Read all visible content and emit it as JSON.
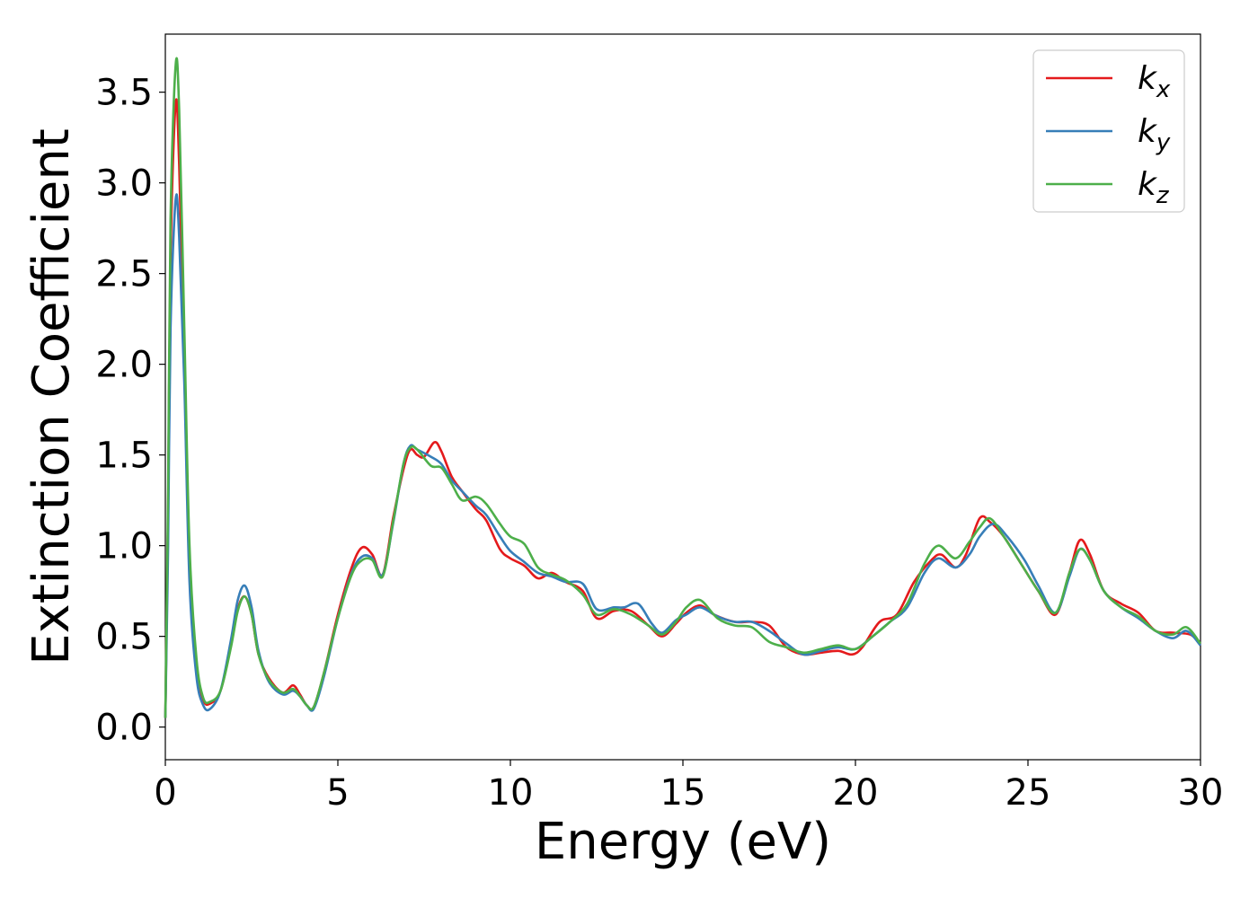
{
  "chart_data": {
    "type": "line",
    "xlabel": "Energy (eV)",
    "ylabel": "Extinction Coefficient",
    "xlim": [
      0,
      30
    ],
    "ylim": [
      -0.18,
      3.82
    ],
    "xticks": [
      0,
      5,
      10,
      15,
      20,
      25,
      30
    ],
    "xtick_labels": [
      "0",
      "5",
      "10",
      "15",
      "20",
      "25",
      "30"
    ],
    "yticks": [
      0.0,
      0.5,
      1.0,
      1.5,
      2.0,
      2.5,
      3.0,
      3.5
    ],
    "ytick_labels": [
      "0.0",
      "0.5",
      "1.0",
      "1.5",
      "2.0",
      "2.5",
      "3.0",
      "3.5"
    ],
    "grid": false,
    "legend": {
      "position": "top-right",
      "entries": [
        {
          "base": "k",
          "sub": "x"
        },
        {
          "base": "k",
          "sub": "y"
        },
        {
          "base": "k",
          "sub": "z"
        }
      ]
    },
    "series": [
      {
        "color": "#e41a1c",
        "points": [
          [
            0,
            0.05
          ],
          [
            0.08,
            1.2
          ],
          [
            0.15,
            2.6
          ],
          [
            0.3,
            3.44
          ],
          [
            0.4,
            3.1
          ],
          [
            0.55,
            2.0
          ],
          [
            0.7,
            0.9
          ],
          [
            0.9,
            0.35
          ],
          [
            1.1,
            0.15
          ],
          [
            1.3,
            0.13
          ],
          [
            1.6,
            0.2
          ],
          [
            1.9,
            0.45
          ],
          [
            2.1,
            0.65
          ],
          [
            2.3,
            0.72
          ],
          [
            2.5,
            0.62
          ],
          [
            2.7,
            0.4
          ],
          [
            3.0,
            0.27
          ],
          [
            3.4,
            0.19
          ],
          [
            3.7,
            0.23
          ],
          [
            3.9,
            0.18
          ],
          [
            4.1,
            0.12
          ],
          [
            4.3,
            0.11
          ],
          [
            4.6,
            0.3
          ],
          [
            5.0,
            0.62
          ],
          [
            5.4,
            0.88
          ],
          [
            5.7,
            0.99
          ],
          [
            6.0,
            0.95
          ],
          [
            6.3,
            0.84
          ],
          [
            6.6,
            1.15
          ],
          [
            6.9,
            1.42
          ],
          [
            7.1,
            1.53
          ],
          [
            7.3,
            1.5
          ],
          [
            7.5,
            1.49
          ],
          [
            7.8,
            1.57
          ],
          [
            8.0,
            1.52
          ],
          [
            8.3,
            1.38
          ],
          [
            8.6,
            1.3
          ],
          [
            9.0,
            1.2
          ],
          [
            9.3,
            1.14
          ],
          [
            9.7,
            0.98
          ],
          [
            10.0,
            0.93
          ],
          [
            10.4,
            0.89
          ],
          [
            10.8,
            0.82
          ],
          [
            11.2,
            0.85
          ],
          [
            11.6,
            0.8
          ],
          [
            12.1,
            0.75
          ],
          [
            12.5,
            0.6
          ],
          [
            13.0,
            0.64
          ],
          [
            13.5,
            0.64
          ],
          [
            14.0,
            0.56
          ],
          [
            14.4,
            0.5
          ],
          [
            14.8,
            0.57
          ],
          [
            15.1,
            0.63
          ],
          [
            15.5,
            0.67
          ],
          [
            15.9,
            0.62
          ],
          [
            16.5,
            0.58
          ],
          [
            17.0,
            0.58
          ],
          [
            17.5,
            0.56
          ],
          [
            18.0,
            0.44
          ],
          [
            18.5,
            0.4
          ],
          [
            19.0,
            0.41
          ],
          [
            19.5,
            0.42
          ],
          [
            19.9,
            0.4
          ],
          [
            20.2,
            0.44
          ],
          [
            20.7,
            0.58
          ],
          [
            21.2,
            0.62
          ],
          [
            21.7,
            0.8
          ],
          [
            22.2,
            0.92
          ],
          [
            22.5,
            0.95
          ],
          [
            22.9,
            0.88
          ],
          [
            23.2,
            0.95
          ],
          [
            23.6,
            1.15
          ],
          [
            23.9,
            1.13
          ],
          [
            24.3,
            1.05
          ],
          [
            24.8,
            0.9
          ],
          [
            25.3,
            0.75
          ],
          [
            25.8,
            0.62
          ],
          [
            26.2,
            0.85
          ],
          [
            26.5,
            1.03
          ],
          [
            26.8,
            0.95
          ],
          [
            27.2,
            0.75
          ],
          [
            27.7,
            0.68
          ],
          [
            28.2,
            0.63
          ],
          [
            28.7,
            0.53
          ],
          [
            29.2,
            0.52
          ],
          [
            29.7,
            0.51
          ],
          [
            30.0,
            0.46
          ]
        ]
      },
      {
        "color": "#377eb8",
        "points": [
          [
            0,
            0.05
          ],
          [
            0.08,
            1.0
          ],
          [
            0.15,
            2.2
          ],
          [
            0.3,
            2.91
          ],
          [
            0.4,
            2.7
          ],
          [
            0.55,
            1.9
          ],
          [
            0.7,
            0.8
          ],
          [
            0.9,
            0.28
          ],
          [
            1.1,
            0.12
          ],
          [
            1.3,
            0.1
          ],
          [
            1.6,
            0.2
          ],
          [
            1.9,
            0.48
          ],
          [
            2.1,
            0.7
          ],
          [
            2.3,
            0.78
          ],
          [
            2.5,
            0.66
          ],
          [
            2.7,
            0.42
          ],
          [
            3.0,
            0.25
          ],
          [
            3.4,
            0.18
          ],
          [
            3.7,
            0.2
          ],
          [
            3.9,
            0.17
          ],
          [
            4.1,
            0.12
          ],
          [
            4.3,
            0.1
          ],
          [
            4.6,
            0.28
          ],
          [
            5.0,
            0.6
          ],
          [
            5.4,
            0.85
          ],
          [
            5.7,
            0.94
          ],
          [
            6.0,
            0.93
          ],
          [
            6.3,
            0.84
          ],
          [
            6.6,
            1.12
          ],
          [
            6.9,
            1.45
          ],
          [
            7.1,
            1.55
          ],
          [
            7.3,
            1.53
          ],
          [
            7.7,
            1.49
          ],
          [
            8.0,
            1.45
          ],
          [
            8.3,
            1.36
          ],
          [
            8.6,
            1.3
          ],
          [
            9.0,
            1.22
          ],
          [
            9.3,
            1.17
          ],
          [
            9.7,
            1.05
          ],
          [
            10.0,
            0.97
          ],
          [
            10.4,
            0.91
          ],
          [
            10.8,
            0.85
          ],
          [
            11.2,
            0.83
          ],
          [
            11.6,
            0.8
          ],
          [
            12.1,
            0.79
          ],
          [
            12.5,
            0.65
          ],
          [
            13.0,
            0.66
          ],
          [
            13.3,
            0.66
          ],
          [
            13.7,
            0.68
          ],
          [
            14.1,
            0.57
          ],
          [
            14.4,
            0.52
          ],
          [
            14.8,
            0.59
          ],
          [
            15.1,
            0.62
          ],
          [
            15.5,
            0.66
          ],
          [
            16.0,
            0.61
          ],
          [
            16.5,
            0.58
          ],
          [
            17.0,
            0.58
          ],
          [
            17.5,
            0.53
          ],
          [
            18.0,
            0.46
          ],
          [
            18.5,
            0.4
          ],
          [
            19.0,
            0.42
          ],
          [
            19.5,
            0.44
          ],
          [
            20.0,
            0.43
          ],
          [
            20.5,
            0.5
          ],
          [
            21.0,
            0.58
          ],
          [
            21.5,
            0.66
          ],
          [
            22.0,
            0.85
          ],
          [
            22.4,
            0.93
          ],
          [
            22.9,
            0.88
          ],
          [
            23.3,
            0.95
          ],
          [
            23.6,
            1.05
          ],
          [
            24.0,
            1.12
          ],
          [
            24.4,
            1.05
          ],
          [
            24.9,
            0.92
          ],
          [
            25.3,
            0.78
          ],
          [
            25.8,
            0.63
          ],
          [
            26.2,
            0.83
          ],
          [
            26.5,
            0.98
          ],
          [
            26.8,
            0.92
          ],
          [
            27.2,
            0.75
          ],
          [
            27.7,
            0.66
          ],
          [
            28.2,
            0.6
          ],
          [
            28.7,
            0.53
          ],
          [
            29.2,
            0.49
          ],
          [
            29.6,
            0.53
          ],
          [
            30.0,
            0.45
          ]
        ]
      },
      {
        "color": "#4daf4a",
        "points": [
          [
            0,
            0.05
          ],
          [
            0.08,
            1.3
          ],
          [
            0.15,
            2.8
          ],
          [
            0.3,
            3.65
          ],
          [
            0.4,
            3.4
          ],
          [
            0.55,
            2.2
          ],
          [
            0.7,
            1.0
          ],
          [
            0.9,
            0.38
          ],
          [
            1.1,
            0.16
          ],
          [
            1.3,
            0.14
          ],
          [
            1.6,
            0.2
          ],
          [
            1.9,
            0.44
          ],
          [
            2.1,
            0.64
          ],
          [
            2.3,
            0.72
          ],
          [
            2.5,
            0.62
          ],
          [
            2.7,
            0.4
          ],
          [
            3.0,
            0.26
          ],
          [
            3.4,
            0.19
          ],
          [
            3.7,
            0.21
          ],
          [
            3.9,
            0.17
          ],
          [
            4.1,
            0.12
          ],
          [
            4.3,
            0.11
          ],
          [
            4.6,
            0.3
          ],
          [
            5.0,
            0.6
          ],
          [
            5.4,
            0.84
          ],
          [
            5.7,
            0.92
          ],
          [
            6.0,
            0.92
          ],
          [
            6.3,
            0.83
          ],
          [
            6.6,
            1.13
          ],
          [
            6.9,
            1.45
          ],
          [
            7.1,
            1.54
          ],
          [
            7.3,
            1.53
          ],
          [
            7.7,
            1.44
          ],
          [
            8.0,
            1.43
          ],
          [
            8.3,
            1.34
          ],
          [
            8.6,
            1.25
          ],
          [
            9.0,
            1.27
          ],
          [
            9.3,
            1.23
          ],
          [
            9.7,
            1.12
          ],
          [
            10.0,
            1.05
          ],
          [
            10.4,
            1.01
          ],
          [
            10.8,
            0.88
          ],
          [
            11.2,
            0.84
          ],
          [
            11.6,
            0.81
          ],
          [
            12.1,
            0.73
          ],
          [
            12.5,
            0.62
          ],
          [
            13.0,
            0.65
          ],
          [
            13.5,
            0.62
          ],
          [
            14.0,
            0.56
          ],
          [
            14.4,
            0.51
          ],
          [
            14.8,
            0.58
          ],
          [
            15.1,
            0.66
          ],
          [
            15.5,
            0.7
          ],
          [
            16.0,
            0.6
          ],
          [
            16.5,
            0.56
          ],
          [
            17.0,
            0.55
          ],
          [
            17.5,
            0.47
          ],
          [
            18.0,
            0.44
          ],
          [
            18.5,
            0.41
          ],
          [
            19.0,
            0.43
          ],
          [
            19.5,
            0.45
          ],
          [
            20.0,
            0.43
          ],
          [
            20.5,
            0.5
          ],
          [
            21.0,
            0.58
          ],
          [
            21.5,
            0.68
          ],
          [
            22.0,
            0.9
          ],
          [
            22.4,
            1.0
          ],
          [
            22.9,
            0.93
          ],
          [
            23.3,
            1.02
          ],
          [
            23.6,
            1.1
          ],
          [
            23.9,
            1.15
          ],
          [
            24.3,
            1.05
          ],
          [
            24.8,
            0.9
          ],
          [
            25.3,
            0.75
          ],
          [
            25.8,
            0.63
          ],
          [
            26.2,
            0.85
          ],
          [
            26.5,
            0.98
          ],
          [
            26.8,
            0.92
          ],
          [
            27.2,
            0.75
          ],
          [
            27.7,
            0.66
          ],
          [
            28.2,
            0.61
          ],
          [
            28.7,
            0.53
          ],
          [
            29.2,
            0.51
          ],
          [
            29.6,
            0.55
          ],
          [
            30.0,
            0.46
          ]
        ]
      }
    ]
  }
}
